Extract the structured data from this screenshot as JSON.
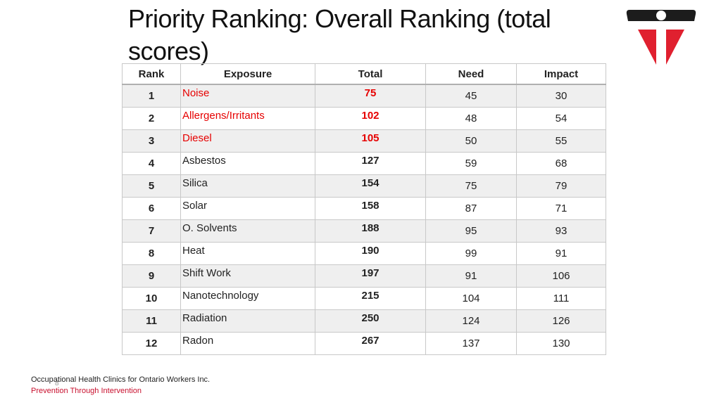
{
  "slide": {
    "title": "Priority Ranking: Overall Ranking (total scores)",
    "page_number": "8"
  },
  "table": {
    "headers": {
      "rank": "Rank",
      "exposure": "Exposure",
      "total": "Total",
      "need": "Need",
      "impact": "Impact"
    },
    "rows": [
      {
        "rank": "1",
        "exposure": "Noise",
        "total": "75",
        "need": "45",
        "impact": "30",
        "highlight": true
      },
      {
        "rank": "2",
        "exposure": "Allergens/Irritants",
        "total": "102",
        "need": "48",
        "impact": "54",
        "highlight": true
      },
      {
        "rank": "3",
        "exposure": "Diesel",
        "total": "105",
        "need": "50",
        "impact": "55",
        "highlight": true
      },
      {
        "rank": "4",
        "exposure": "Asbestos",
        "total": "127",
        "need": "59",
        "impact": "68",
        "highlight": false
      },
      {
        "rank": "5",
        "exposure": "Silica",
        "total": "154",
        "need": "75",
        "impact": "79",
        "highlight": false
      },
      {
        "rank": "6",
        "exposure": "Solar",
        "total": "158",
        "need": "87",
        "impact": "71",
        "highlight": false
      },
      {
        "rank": "7",
        "exposure": "O. Solvents",
        "total": "188",
        "need": "95",
        "impact": "93",
        "highlight": false
      },
      {
        "rank": "8",
        "exposure": "Heat",
        "total": "190",
        "need": "99",
        "impact": "91",
        "highlight": false
      },
      {
        "rank": "9",
        "exposure": "Shift Work",
        "total": "197",
        "need": "91",
        "impact": "106",
        "highlight": false
      },
      {
        "rank": "10",
        "exposure": "Nanotechnology",
        "total": "215",
        "need": "104",
        "impact": "111",
        "highlight": false
      },
      {
        "rank": "11",
        "exposure": "Radiation",
        "total": "250",
        "need": "124",
        "impact": "126",
        "highlight": false
      },
      {
        "rank": "12",
        "exposure": "Radon",
        "total": "267",
        "need": "137",
        "impact": "130",
        "highlight": false
      }
    ]
  },
  "footer": {
    "organization": "Occupational Health Clinics for Ontario Workers Inc.",
    "tagline": "Prevention Through Intervention"
  },
  "colors": {
    "highlight": "#e60000",
    "logo_dark": "#1c1c1c",
    "logo_red": "#e0202f"
  },
  "logo": {
    "icon": "ohcow-logo-icon"
  }
}
